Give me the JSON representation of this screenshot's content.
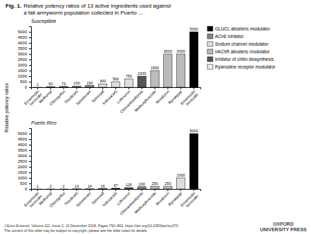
{
  "title": "Fig. 1.",
  "subtitle": "Relative potency ratios of 13 active ingredients used against\na fall armyworm population collected in Puerto ...",
  "ylabel": "Relative potency ratios",
  "annotations": [
    "J Econ Entomol, Volume 112, Issue 2, 10 December 2018, Pages 792–802, https://doi.org/10.1093/jee/toy372\nThe content of this slide may be subject to copyright: please see the slide notes for details.",
    "OXFORD\nUNIVERSITY PRESS"
  ],
  "chart_data": [
    {
      "type": "bar",
      "title": "Susceptible",
      "categories": [
        "Emamectin\nbenzoate",
        "Methomyl",
        "Chlorpyrifos",
        "Thiodicarb",
        "Spinetoram",
        "Spinosad",
        "Indoxacarb",
        "Lufenuron",
        "Chlorantraniliprole",
        "Methoxyfenozide",
        "Novaluron",
        "Rynaxypyr",
        "Emamectin\nbenzoate"
      ],
      "series": [
        {
          "name": "GLUCL allosteric modulator",
          "color": "#000000",
          "values": [
            1,
            null,
            null,
            null,
            null,
            null,
            null,
            null,
            null,
            null,
            null,
            null,
            5000
          ]
        },
        {
          "name": "AChE inhibitor",
          "color": "#888888",
          "values": [
            null,
            60,
            73,
            100,
            150,
            null,
            null,
            null,
            null,
            null,
            null,
            null,
            null
          ]
        },
        {
          "name": "Sodium channel modulator",
          "color": "#dddddd",
          "values": [
            null,
            null,
            null,
            null,
            null,
            300,
            500,
            750,
            null,
            null,
            null,
            null,
            null
          ]
        },
        {
          "name": "nAChR allosteric modulator",
          "color": "#bbbbbb",
          "values": [
            null,
            null,
            null,
            null,
            null,
            null,
            null,
            null,
            null,
            1500,
            3000,
            3000,
            null
          ]
        },
        {
          "name": "Inhibitor of chitin biosynthesis",
          "color": "#555555",
          "values": [
            null,
            null,
            null,
            null,
            null,
            null,
            null,
            null,
            1000,
            null,
            null,
            null,
            null
          ]
        },
        {
          "name": "Ryanodine receptor modulator",
          "color": "#eeeeee",
          "values": [
            null,
            null,
            null,
            null,
            null,
            null,
            null,
            null,
            null,
            null,
            null,
            null,
            null
          ]
        }
      ],
      "stacked": true,
      "ylim": [
        0,
        5500
      ],
      "yticks": [
        0,
        500,
        1000,
        1500,
        2000,
        2500,
        3000,
        3500,
        4000,
        4500,
        5000
      ],
      "data_labels": true,
      "grid": false,
      "legend": "right"
    },
    {
      "type": "bar",
      "title": "Puerto Rico",
      "categories": [
        "Emamectin\nbenzoate",
        "Methomyl",
        "Chlorpyrifos",
        "Thiodicarb",
        "Spinetoram",
        "Spinosad",
        "Indoxacarb",
        "Lufenuron",
        "Chlorantraniliprole",
        "Methoxyfenozide",
        "Novaluron",
        "Rynaxypyr",
        "Emamectin\nbenzoate"
      ],
      "series": [
        {
          "name": "GLUCL allosteric modulator",
          "color": "#000000",
          "values": [
            1,
            2,
            2,
            13,
            14,
            26,
            67,
            null,
            null,
            null,
            null,
            null,
            5000
          ]
        },
        {
          "name": "AChE inhibitor",
          "color": "#888888",
          "values": [
            null,
            null,
            null,
            null,
            null,
            null,
            null,
            null,
            200,
            null,
            null,
            null,
            null
          ]
        },
        {
          "name": "Sodium channel modulator",
          "color": "#dddddd",
          "values": [
            null,
            null,
            null,
            null,
            null,
            null,
            null,
            null,
            null,
            null,
            null,
            1000,
            null
          ]
        },
        {
          "name": "nAChR allosteric modulator",
          "color": "#bbbbbb",
          "values": [
            null,
            null,
            null,
            null,
            null,
            null,
            null,
            null,
            null,
            250,
            250,
            null,
            null
          ]
        },
        {
          "name": "Inhibitor of chitin biosynthesis",
          "color": "#555555",
          "values": [
            null,
            null,
            null,
            null,
            null,
            null,
            null,
            125,
            null,
            null,
            null,
            null,
            null
          ]
        },
        {
          "name": "Ryanodine receptor modulator",
          "color": "#eeeeee",
          "values": [
            null,
            null,
            null,
            null,
            null,
            null,
            null,
            null,
            null,
            null,
            null,
            null,
            null
          ]
        }
      ],
      "stacked": true,
      "ylim": [
        0,
        5500
      ],
      "yticks": [
        0,
        500,
        1000,
        1500,
        2000,
        2500,
        3000,
        3500,
        4000,
        4500,
        5000
      ],
      "data_labels": true,
      "grid": false
    }
  ]
}
